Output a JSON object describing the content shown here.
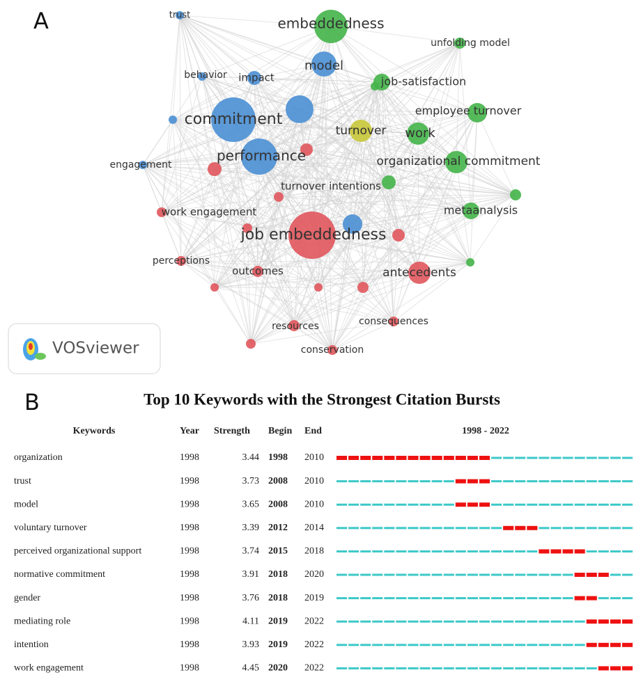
{
  "panel_a": {
    "label": "A",
    "nodes": [
      {
        "label": "trust",
        "color": "#4a8fd4"
      },
      {
        "label": "embeddedness",
        "color": "#44b449"
      },
      {
        "label": "unfolding model",
        "color": "#44b449"
      },
      {
        "label": "model",
        "color": "#4a8fd4"
      },
      {
        "label": "behavior",
        "color": "#4a8fd4"
      },
      {
        "label": "impact",
        "color": "#4a8fd4"
      },
      {
        "label": "job-satisfaction",
        "color": "#44b449"
      },
      {
        "label": "commitment",
        "color": "#4a8fd4"
      },
      {
        "label": "employee turnover",
        "color": "#44b449"
      },
      {
        "label": "turnover",
        "color": "#c9c83a"
      },
      {
        "label": "work",
        "color": "#44b449"
      },
      {
        "label": "performance",
        "color": "#4a8fd4"
      },
      {
        "label": "engagement",
        "color": "#4a8fd4"
      },
      {
        "label": "organizational commitment",
        "color": "#44b449"
      },
      {
        "label": "turnover intentions",
        "color": "#44b449"
      },
      {
        "label": "work engagement",
        "color": "#e0575c"
      },
      {
        "label": "metaanalysis",
        "color": "#44b449"
      },
      {
        "label": "job embeddedness",
        "color": "#e0575c"
      },
      {
        "label": "perceptions",
        "color": "#e0575c"
      },
      {
        "label": "outcomes",
        "color": "#e0575c"
      },
      {
        "label": "antecedents",
        "color": "#e0575c"
      },
      {
        "label": "resources",
        "color": "#e0575c"
      },
      {
        "label": "consequences",
        "color": "#e0575c"
      },
      {
        "label": "conservation",
        "color": "#e0575c"
      }
    ],
    "logo": "VOSviewer"
  },
  "panel_b": {
    "label": "B",
    "title": "Top 10 Keywords with the Strongest Citation Bursts",
    "headers": {
      "keyword": "Keywords",
      "year": "Year",
      "strength": "Strength",
      "begin": "Begin",
      "end": "End",
      "range": "1998 - 2022"
    },
    "burst_color": "#ee1111",
    "base_color": "#3cc8c8",
    "rows": [
      {
        "keyword": "organization",
        "year": 1998,
        "strength": 3.44,
        "begin": 1998,
        "end": 2010
      },
      {
        "keyword": "trust",
        "year": 1998,
        "strength": 3.73,
        "begin": 2008,
        "end": 2010
      },
      {
        "keyword": "model",
        "year": 1998,
        "strength": 3.65,
        "begin": 2008,
        "end": 2010
      },
      {
        "keyword": "voluntary turnover",
        "year": 1998,
        "strength": 3.39,
        "begin": 2012,
        "end": 2014
      },
      {
        "keyword": "perceived organizational support",
        "year": 1998,
        "strength": 3.74,
        "begin": 2015,
        "end": 2018
      },
      {
        "keyword": "normative commitment",
        "year": 1998,
        "strength": 3.91,
        "begin": 2018,
        "end": 2020
      },
      {
        "keyword": "gender",
        "year": 1998,
        "strength": 3.76,
        "begin": 2018,
        "end": 2019
      },
      {
        "keyword": "mediating role",
        "year": 1998,
        "strength": 4.11,
        "begin": 2019,
        "end": 2022
      },
      {
        "keyword": "intention",
        "year": 1998,
        "strength": 3.93,
        "begin": 2019,
        "end": 2022
      },
      {
        "keyword": "work engagement",
        "year": 1998,
        "strength": 4.45,
        "begin": 2020,
        "end": 2022
      }
    ]
  }
}
